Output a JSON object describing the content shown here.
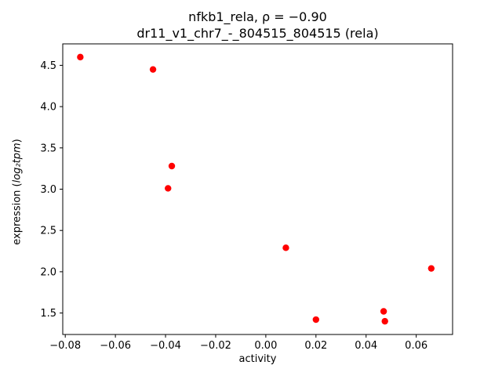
{
  "figure": {
    "title_line1": "nfkb1_rela, ρ = −0.90",
    "title_line2": "dr11_v1_chr7_-_804515_804515 (rela)",
    "xlabel": "activity",
    "ylabel_prefix": "expression (",
    "ylabel_math": "log₂tpm",
    "ylabel_suffix": ")"
  },
  "chart_data": {
    "type": "scatter",
    "title": "nfkb1_rela, ρ = −0.90\ndr11_v1_chr7_-_804515_804515 (rela)",
    "xlabel": "activity",
    "ylabel": "expression (log₂tpm)",
    "xlim": [
      -0.081,
      0.0745
    ],
    "ylim": [
      1.24,
      4.76
    ],
    "xticks": [
      -0.08,
      -0.06,
      -0.04,
      -0.02,
      0.0,
      0.02,
      0.04,
      0.06
    ],
    "xtick_labels": [
      "−0.08",
      "−0.06",
      "−0.04",
      "−0.02",
      "0.00",
      "0.02",
      "0.04",
      "0.06"
    ],
    "yticks": [
      1.5,
      2.0,
      2.5,
      3.0,
      3.5,
      4.0,
      4.5
    ],
    "ytick_labels": [
      "1.5",
      "2.0",
      "2.5",
      "3.0",
      "3.5",
      "4.0",
      "4.5"
    ],
    "grid": false,
    "legend": "none",
    "marker": "circle",
    "marker_color": "#ff0000",
    "series": [
      {
        "name": "rela",
        "color": "#ff0000",
        "points": [
          [
            -0.074,
            4.6
          ],
          [
            -0.045,
            4.45
          ],
          [
            -0.0375,
            3.28
          ],
          [
            -0.039,
            3.01
          ],
          [
            0.008,
            2.29
          ],
          [
            0.02,
            1.42
          ],
          [
            0.047,
            1.52
          ],
          [
            0.0475,
            1.4
          ],
          [
            0.066,
            2.04
          ]
        ]
      }
    ]
  }
}
